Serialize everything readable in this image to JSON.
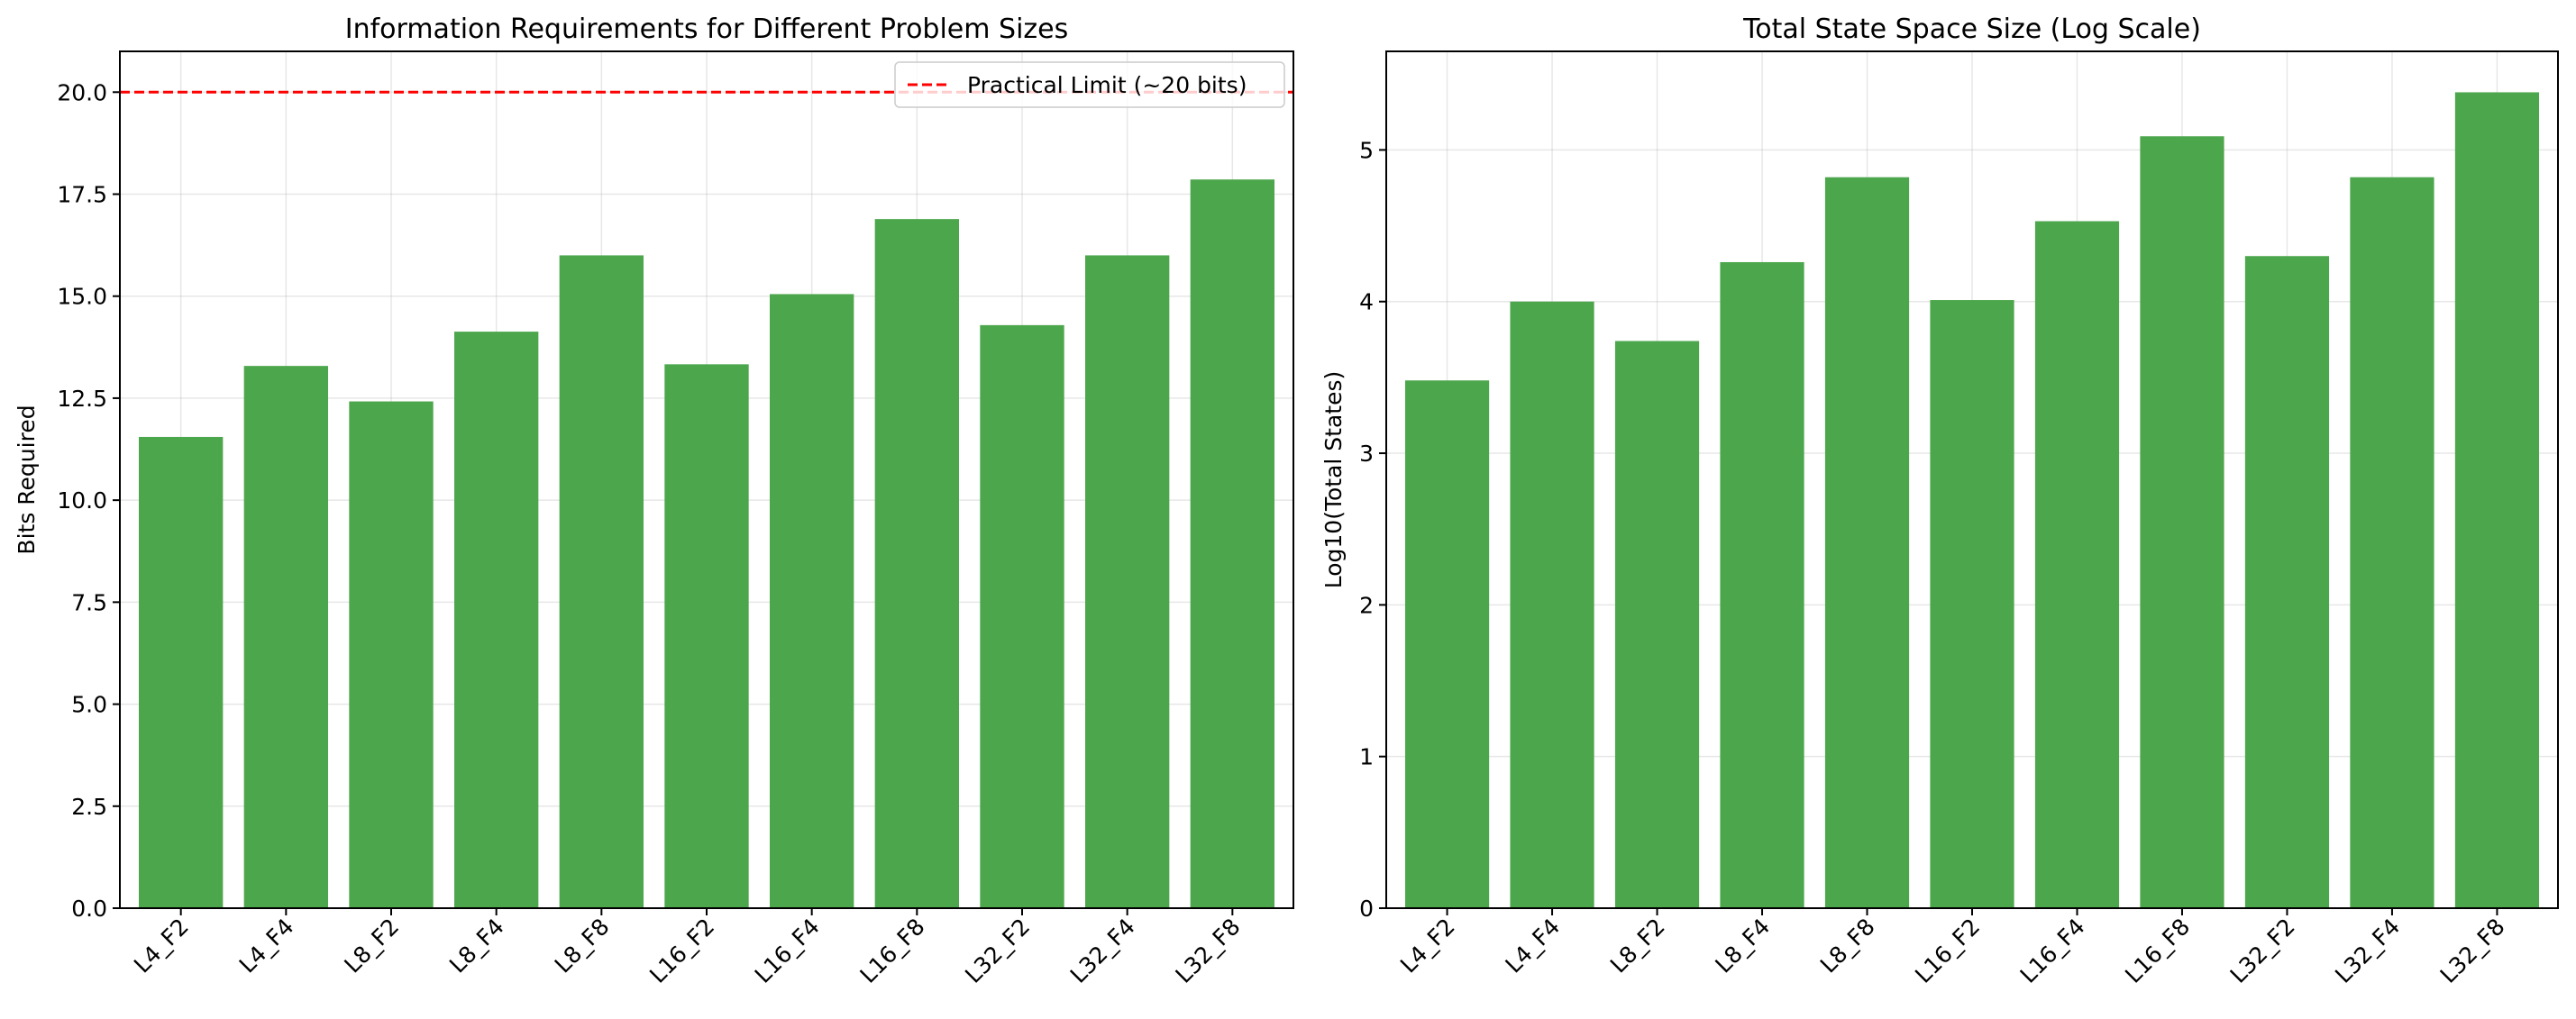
{
  "chart_data": [
    {
      "type": "bar",
      "title": "Information Requirements for Different Problem Sizes",
      "xlabel": "",
      "ylabel": "Bits Required",
      "categories": [
        "L4_F2",
        "L4_F4",
        "L8_F2",
        "L8_F4",
        "L8_F8",
        "L16_F2",
        "L16_F4",
        "L16_F8",
        "L32_F2",
        "L32_F4",
        "L32_F8"
      ],
      "values": [
        11.55,
        13.29,
        12.42,
        14.13,
        16.0,
        13.33,
        15.05,
        16.89,
        14.29,
        16.0,
        17.86
      ],
      "ylim": [
        0,
        21.0
      ],
      "yticks": [
        0.0,
        2.5,
        5.0,
        7.5,
        10.0,
        12.5,
        15.0,
        17.5,
        20.0
      ],
      "ytick_labels": [
        "0.0",
        "2.5",
        "5.0",
        "7.5",
        "10.0",
        "12.5",
        "15.0",
        "17.5",
        "20.0"
      ],
      "bar_color": "#4ca64c",
      "grid": true,
      "reference_line": {
        "y": 20,
        "label": "Practical Limit (~20 bits)",
        "color": "#ff0000",
        "style": "dashed"
      },
      "legend": {
        "position": "top-right",
        "entries": [
          "Practical Limit (~20 bits)"
        ]
      }
    },
    {
      "type": "bar",
      "title": "Total State Space Size (Log Scale)",
      "xlabel": "",
      "ylabel": "Log10(Total States)",
      "categories": [
        "L4_F2",
        "L4_F4",
        "L8_F2",
        "L8_F4",
        "L8_F8",
        "L16_F2",
        "L16_F4",
        "L16_F8",
        "L32_F2",
        "L32_F4",
        "L32_F8"
      ],
      "values": [
        3.48,
        4.0,
        3.74,
        4.26,
        4.82,
        4.01,
        4.53,
        5.09,
        4.3,
        4.82,
        5.38
      ],
      "ylim": [
        0,
        5.65
      ],
      "yticks": [
        0,
        1,
        2,
        3,
        4,
        5
      ],
      "ytick_labels": [
        "0",
        "1",
        "2",
        "3",
        "4",
        "5"
      ],
      "bar_color": "#4ca64c",
      "grid": true
    }
  ]
}
